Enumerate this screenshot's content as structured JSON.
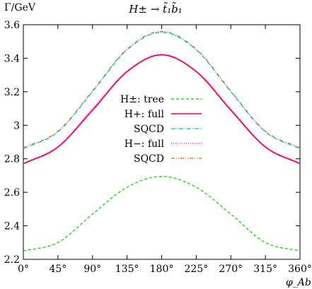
{
  "chart_data": {
    "type": "line",
    "title": "H± → t̃₁b̃₁",
    "ylabel": "Γ/GeV",
    "xlabel": "φ_Ab",
    "xlim": [
      0,
      360
    ],
    "ylim": [
      2.2,
      3.6
    ],
    "x_ticks": [
      0,
      45,
      90,
      135,
      180,
      225,
      270,
      315,
      360
    ],
    "x_tick_labels": [
      "0°",
      "45°",
      "90°",
      "135°",
      "180°",
      "225°",
      "270°",
      "315°",
      "360°"
    ],
    "y_ticks": [
      2.2,
      2.4,
      2.6,
      2.8,
      3.0,
      3.2,
      3.4,
      3.6
    ],
    "y_tick_labels": [
      "2.2",
      "2.4",
      "2.6",
      "2.8",
      "3",
      "3.2",
      "3.4",
      "3.6"
    ],
    "grid": false,
    "legend_position": "center",
    "series": [
      {
        "name": "H±: tree",
        "color": "#00cc00",
        "dash": "dashed",
        "x": [
          0,
          45,
          90,
          135,
          180,
          225,
          270,
          315,
          360
        ],
        "values": [
          2.25,
          2.3,
          2.47,
          2.63,
          2.695,
          2.63,
          2.47,
          2.3,
          2.25
        ]
      },
      {
        "name": "H+: full",
        "color": "#e8003c",
        "dash": "solid",
        "x": [
          0,
          45,
          90,
          135,
          180,
          225,
          270,
          315,
          360
        ],
        "values": [
          2.77,
          2.87,
          3.09,
          3.32,
          3.42,
          3.32,
          3.09,
          2.87,
          2.77
        ]
      },
      {
        "name": "SQCD",
        "color": "#00c8c8",
        "dash": "dashdot",
        "x": [
          0,
          45,
          90,
          135,
          180,
          225,
          270,
          315,
          360
        ],
        "values": [
          2.86,
          2.96,
          3.2,
          3.45,
          3.555,
          3.45,
          3.2,
          2.96,
          2.86
        ]
      },
      {
        "name": "H−: full",
        "color": "#ff00ff",
        "dash": "dotted",
        "x": [
          0,
          45,
          90,
          135,
          180,
          225,
          270,
          315,
          360
        ],
        "values": [
          2.775,
          2.875,
          3.1,
          3.325,
          3.425,
          3.325,
          3.1,
          2.875,
          2.775
        ]
      },
      {
        "name": "SQCD",
        "color": "#d2691e",
        "dash": "dashdotdot",
        "x": [
          0,
          45,
          90,
          135,
          180,
          225,
          270,
          315,
          360
        ],
        "values": [
          2.865,
          2.965,
          3.205,
          3.455,
          3.56,
          3.455,
          3.205,
          2.965,
          2.865
        ]
      }
    ]
  }
}
